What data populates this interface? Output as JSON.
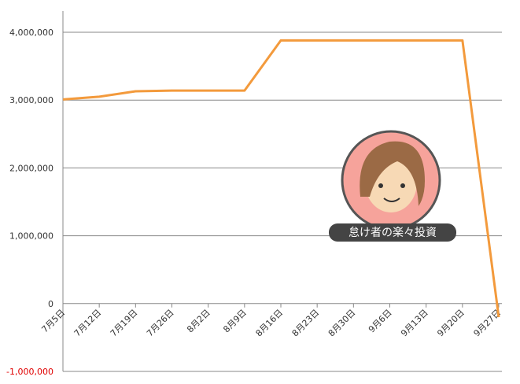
{
  "chart_data": {
    "type": "line",
    "categories": [
      "7月5日",
      "7月12日",
      "7月19日",
      "7月26日",
      "8月2日",
      "8月9日",
      "8月16日",
      "8月23日",
      "8月30日",
      "9月6日",
      "9月13日",
      "9月20日",
      "9月27日"
    ],
    "values": [
      3010000,
      3050000,
      3130000,
      3140000,
      3140000,
      3140000,
      3880000,
      3880000,
      3880000,
      3880000,
      3880000,
      3880000,
      -200000
    ],
    "color": "#f39a3c",
    "ylim": [
      -1000000,
      4000000
    ],
    "yticks": [
      {
        "value": -1000000,
        "label": "-1,000,000"
      },
      {
        "value": 0,
        "label": "0"
      },
      {
        "value": 1000000,
        "label": "1,000,000"
      },
      {
        "value": 2000000,
        "label": "2,000,000"
      },
      {
        "value": 3000000,
        "label": "3,000,000"
      },
      {
        "value": 4000000,
        "label": "4,000,000"
      }
    ],
    "negative_tick_color": "#e00000",
    "grid": true,
    "annotation": "怠け者の楽々投資"
  }
}
